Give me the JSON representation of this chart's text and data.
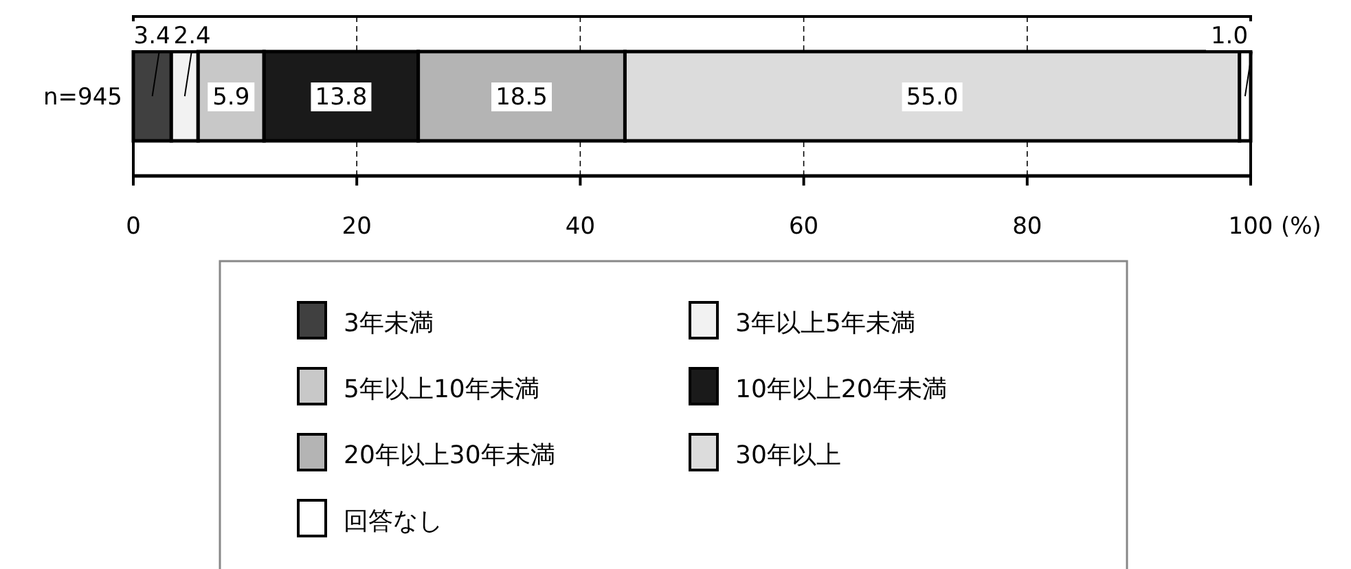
{
  "chart_data": {
    "type": "bar",
    "orientation": "horizontal",
    "stacked": true,
    "categories": [
      "n=945"
    ],
    "xlabel": "(%)",
    "xlim": [
      0,
      100
    ],
    "xticks": [
      0,
      20,
      40,
      60,
      80,
      100
    ],
    "grid": "x",
    "legend": "bottom",
    "series": [
      {
        "name": "3年未満",
        "color": "#404040",
        "values": [
          3.4
        ],
        "value_labels": [
          "3.4"
        ]
      },
      {
        "name": "3年以上5年未満",
        "color": "#f2f2f2",
        "values": [
          2.4
        ],
        "value_labels": [
          "2.4"
        ]
      },
      {
        "name": "5年以上10年未満",
        "color": "#c8c8c8",
        "values": [
          5.9
        ],
        "value_labels": [
          "5.9"
        ]
      },
      {
        "name": "10年以上20年未満",
        "color": "#1a1a1a",
        "values": [
          13.8
        ],
        "value_labels": [
          "13.8"
        ]
      },
      {
        "name": "20年以上30年未満",
        "color": "#b4b4b4",
        "values": [
          18.5
        ],
        "value_labels": [
          "18.5"
        ]
      },
      {
        "name": "30年以上",
        "color": "#dcdcdc",
        "values": [
          55.0
        ],
        "value_labels": [
          "55.0"
        ]
      },
      {
        "name": "回答なし",
        "color": "#ffffff",
        "values": [
          1.0
        ],
        "value_labels": [
          "1.0"
        ]
      }
    ]
  }
}
